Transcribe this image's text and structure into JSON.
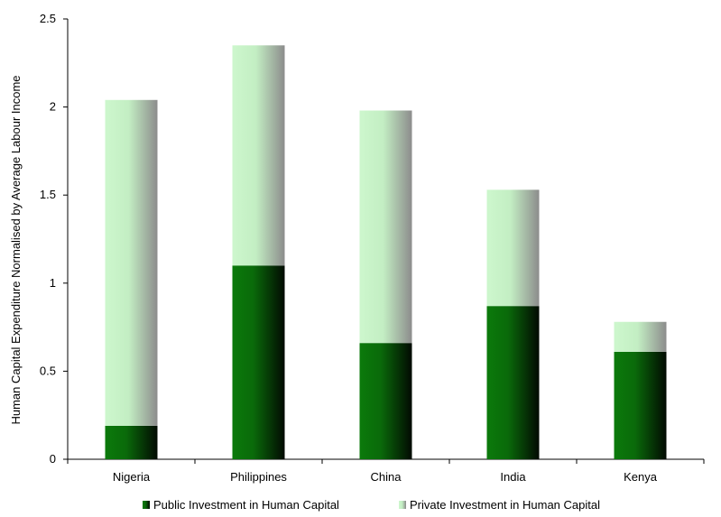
{
  "chart_data": {
    "type": "bar",
    "stacked": true,
    "categories": [
      "Nigeria",
      "Philippines",
      "China",
      "India",
      "Kenya"
    ],
    "series": [
      {
        "name": "Public Investment in Human Capital",
        "values": [
          0.19,
          1.1,
          0.66,
          0.87,
          0.61
        ],
        "color": "#0a6e0a"
      },
      {
        "name": "Private Investment in Human Capital",
        "values": [
          1.85,
          1.25,
          1.32,
          0.66,
          0.17
        ],
        "color": "#c8f5c8"
      }
    ],
    "xlabel": "",
    "ylabel": "Human Capital Expenditure Normalised by Average Labour Income",
    "ylim": [
      0,
      2.5
    ],
    "yticks": [
      "0",
      "0.5",
      "1",
      "1.5",
      "2",
      "2.5"
    ],
    "grid": false,
    "legend_position": "bottom"
  }
}
